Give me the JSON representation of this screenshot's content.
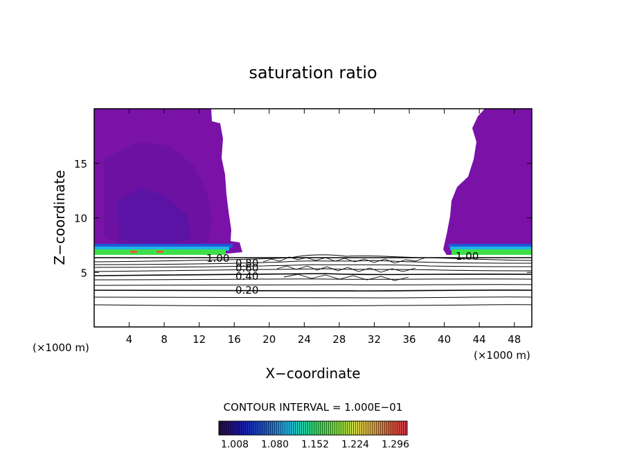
{
  "chart_data": {
    "type": "heatmap",
    "title": "saturation ratio",
    "xlabel": "X−coordinate",
    "ylabel": "Z−coordinate",
    "x_unit": "(×1000 m)",
    "y_unit": "(×1000 m)",
    "xlim": [
      0,
      50
    ],
    "ylim": [
      0,
      20
    ],
    "x_ticks": [
      4,
      8,
      12,
      16,
      20,
      24,
      28,
      32,
      36,
      40,
      44,
      48
    ],
    "y_ticks": [
      5,
      10,
      15
    ],
    "contour_interval_label": "CONTOUR INTERVAL = 1.000E−01",
    "contour_labels": [
      "1.00",
      "0.80",
      "0.60",
      "0.40",
      "0.20",
      "1.00"
    ],
    "colorbar": {
      "ticks": [
        "1.008",
        "1.080",
        "1.152",
        "1.224",
        "1.296"
      ],
      "colors": [
        "#2a0a55",
        "#1a1aa0",
        "#1f5ad6",
        "#22b4e6",
        "#25d6a0",
        "#3ee04a",
        "#8adf3c",
        "#d8d84a",
        "#e0a83c",
        "#e05a3a",
        "#d03848"
      ]
    },
    "supersaturated_regions": [
      {
        "x": [
          0,
          15
        ],
        "z_bottom": 6.5,
        "z_top": 20
      },
      {
        "x": 40,
        "z_bottom": 6.5,
        "z_top": 20
      }
    ],
    "subsaturated_contours": [
      {
        "level": 0.2,
        "z": 3.4
      },
      {
        "level": 0.4,
        "z": 4.7
      },
      {
        "level": 0.6,
        "z": 5.4
      },
      {
        "level": 0.8,
        "z": 5.7
      },
      {
        "level": 1.0,
        "z": 6.2
      }
    ]
  }
}
